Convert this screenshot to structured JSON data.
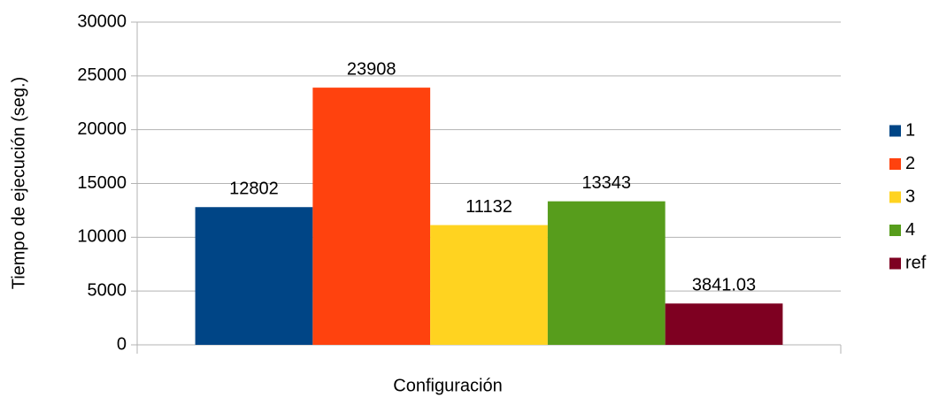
{
  "chart_data": {
    "type": "bar",
    "x_label": "Configuración",
    "y_label": "Tiempo de ejecución (seg.)",
    "categories": [
      null
    ],
    "series": [
      {
        "name": "1",
        "color": "#004586",
        "values": [
          12802
        ]
      },
      {
        "name": "2",
        "color": "#ff420e",
        "values": [
          23908
        ]
      },
      {
        "name": "3",
        "color": "#ffd320",
        "values": [
          11132
        ]
      },
      {
        "name": "4",
        "color": "#579d1c",
        "values": [
          13343
        ]
      },
      {
        "name": "ref",
        "color": "#7e0021",
        "values": [
          3841.03
        ]
      }
    ],
    "ylim": [
      0,
      30000
    ],
    "yticks": [
      0,
      5000,
      10000,
      15000,
      20000,
      25000,
      30000
    ],
    "grid": true,
    "legend": "right"
  }
}
